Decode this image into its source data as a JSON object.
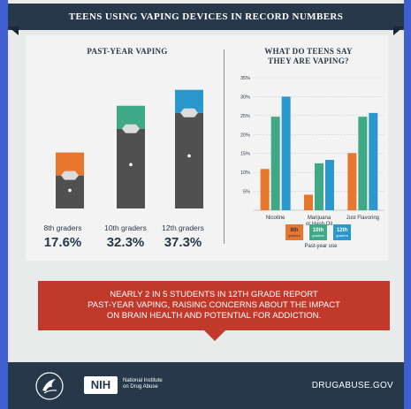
{
  "banner": {
    "title": "TEENS USING VAPING DEVICES IN RECORD NUMBERS"
  },
  "left_section": {
    "title": "PAST-YEAR VAPING",
    "grades": [
      {
        "label": "8th graders",
        "value": "17.6%"
      },
      {
        "label": "10th graders",
        "value": "32.3%"
      },
      {
        "label": "12th graders",
        "value": "37.3%"
      }
    ]
  },
  "right_section": {
    "title_line1": "WHAT DO TEENS SAY",
    "title_line2": "THEY ARE VAPING?",
    "legend_caption": "Past-year use"
  },
  "callout": {
    "line1": "NEARLY 2 IN 5 STUDENTS IN 12TH GRADE REPORT",
    "line2": "PAST-YEAR VAPING, RAISING CONCERNS ABOUT THE IMPACT",
    "line3": "ON BRAIN HEALTH AND POTENTIAL FOR ADDICTION."
  },
  "footer": {
    "nih": "NIH",
    "nih_name_line1": "National Institute",
    "nih_name_line2": "on Drug Abuse",
    "url": "DRUGABUSE.GOV"
  },
  "colors": {
    "grade8": "#e8762c",
    "grade10": "#3fa987",
    "grade12": "#2b97cf",
    "device": "#505050",
    "navy": "#26384a"
  },
  "chart_data": [
    {
      "type": "bar",
      "title": "PAST-YEAR VAPING",
      "categories": [
        "8th graders",
        "10th graders",
        "12th graders"
      ],
      "values": [
        17.6,
        32.3,
        37.3
      ],
      "unit": "%"
    },
    {
      "type": "bar",
      "title": "WHAT DO TEENS SAY THEY ARE VAPING?",
      "categories": [
        "Nicotine",
        "Marijuana or Hash Oil",
        "Just Flavoring"
      ],
      "category_lines": [
        [
          "Nicotine"
        ],
        [
          "Marijuana",
          "or Hash Oil"
        ],
        [
          "Just Flavoring"
        ]
      ],
      "series": [
        {
          "name": "8th graders",
          "legend_line1": "8th",
          "legend_line2": "graders",
          "values": [
            10.9,
            4.1,
            15.1
          ]
        },
        {
          "name": "10th graders",
          "legend_line1": "10th",
          "legend_line2": "graders",
          "values": [
            24.7,
            12.4,
            24.7
          ]
        },
        {
          "name": "12th graders",
          "legend_line1": "12th",
          "legend_line2": "graders",
          "values": [
            30.0,
            13.3,
            25.7
          ]
        }
      ],
      "yticks": [
        "5%",
        "10%",
        "15%",
        "20%",
        "25%",
        "30%",
        "35%"
      ],
      "ylim": [
        0,
        35
      ],
      "grid": true,
      "legend": "bottom",
      "legend_caption": "Past-year use"
    }
  ]
}
